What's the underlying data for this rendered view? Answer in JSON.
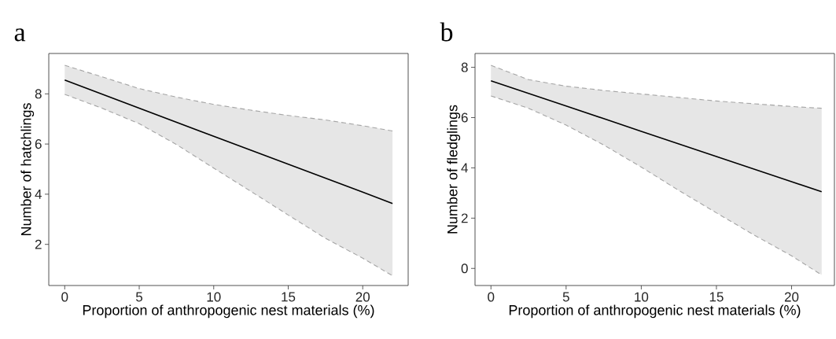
{
  "chart_data": [
    {
      "type": "line",
      "title": "a",
      "xlabel": "Proportion of anthropogenic nest materials (%)",
      "ylabel": "Number of hatchlings",
      "xlim": [
        -1.07,
        23.05
      ],
      "ylim": [
        0.36,
        9.61
      ],
      "xticks": [
        0,
        5,
        10,
        15,
        20
      ],
      "yticks": [
        2,
        4,
        6,
        8
      ],
      "grid": false,
      "series": [
        {
          "color": "#000000",
          "line_style": "solid",
          "x": [
            0,
            2.5,
            5,
            7.5,
            10,
            12.5,
            15,
            17.5,
            20,
            22
          ],
          "values": [
            8.55,
            7.99,
            7.43,
            6.87,
            6.31,
            5.75,
            5.2,
            4.64,
            4.08,
            3.63
          ],
          "lower": [
            7.98,
            7.43,
            6.81,
            5.98,
            5.04,
            4.11,
            3.17,
            2.24,
            1.45,
            0.75
          ],
          "upper": [
            9.14,
            8.68,
            8.21,
            7.87,
            7.58,
            7.35,
            7.14,
            6.96,
            6.73,
            6.52
          ]
        },
        {
          "color": "#a5a5a5",
          "line_style": "dashed",
          "x": [
            0,
            2.5,
            5,
            7.5,
            10,
            12.5,
            15,
            17.5,
            20,
            22
          ],
          "values": [
            9.14,
            8.68,
            8.21,
            7.87,
            7.58,
            7.35,
            7.14,
            6.96,
            6.73,
            6.52
          ]
        },
        {
          "color": "#a5a5a5",
          "line_style": "dashed",
          "x": [
            0,
            2.5,
            5,
            7.5,
            10,
            12.5,
            15,
            17.5,
            20,
            22
          ],
          "values": [
            7.98,
            7.43,
            6.81,
            5.98,
            5.04,
            4.11,
            3.17,
            2.24,
            1.45,
            0.75
          ]
        }
      ]
    },
    {
      "type": "line",
      "title": "b",
      "xlabel": "Proportion of anthropogenic nest materials (%)",
      "ylabel": "Number of fledglings",
      "xlim": [
        -1.06,
        22.85
      ],
      "ylim": [
        -0.68,
        8.55
      ],
      "xticks": [
        0,
        5,
        10,
        15,
        20
      ],
      "yticks": [
        0,
        2,
        4,
        6,
        8
      ],
      "grid": false,
      "series": [
        {
          "color": "#000000",
          "line_style": "solid",
          "x": [
            0,
            2.5,
            5,
            7.5,
            10,
            12.5,
            15,
            17.5,
            20,
            22
          ],
          "values": [
            7.46,
            6.96,
            6.46,
            5.96,
            5.45,
            4.95,
            4.45,
            3.95,
            3.45,
            3.05
          ],
          "lower": [
            6.86,
            6.37,
            5.7,
            4.91,
            4.03,
            3.1,
            2.21,
            1.33,
            0.5,
            -0.26
          ],
          "upper": [
            8.08,
            7.51,
            7.25,
            7.08,
            6.94,
            6.8,
            6.66,
            6.55,
            6.44,
            6.37
          ]
        },
        {
          "color": "#a5a5a5",
          "line_style": "dashed",
          "x": [
            0,
            2.5,
            5,
            7.5,
            10,
            12.5,
            15,
            17.5,
            20,
            22
          ],
          "values": [
            8.08,
            7.51,
            7.25,
            7.08,
            6.94,
            6.8,
            6.66,
            6.55,
            6.44,
            6.37
          ]
        },
        {
          "color": "#a5a5a5",
          "line_style": "dashed",
          "x": [
            0,
            2.5,
            5,
            7.5,
            10,
            12.5,
            15,
            17.5,
            20,
            22
          ],
          "values": [
            6.86,
            6.37,
            5.7,
            4.91,
            4.03,
            3.1,
            2.21,
            1.33,
            0.5,
            -0.26
          ]
        }
      ]
    }
  ]
}
